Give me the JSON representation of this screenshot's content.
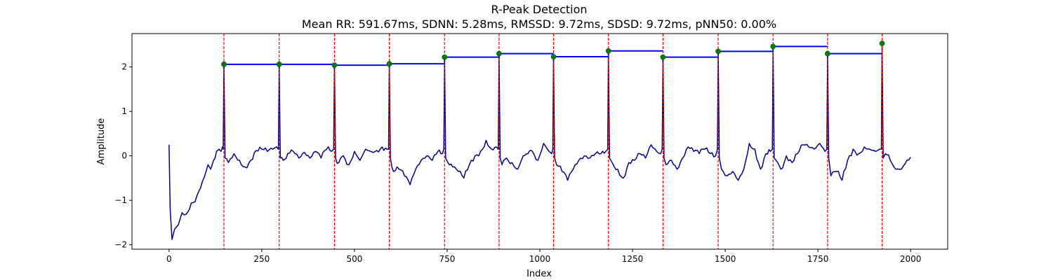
{
  "chart_data": {
    "type": "line",
    "title": "R-Peak Detection",
    "subtitle": "Mean RR: 591.67ms, SDNN: 5.28ms, RMSSD: 9.72ms, SDSD: 9.72ms, pNN50: 0.00%",
    "xlabel": "Index",
    "ylabel": "Amplitude",
    "xlim": [
      -100,
      2100
    ],
    "ylim": [
      -2.1,
      2.75
    ],
    "xticks": [
      0,
      250,
      500,
      750,
      1000,
      1250,
      1500,
      1750,
      2000
    ],
    "xtick_labels": [
      "0",
      "250",
      "500",
      "750",
      "1000",
      "1250",
      "1500",
      "1750",
      "2000"
    ],
    "yticks": [
      -2,
      -1,
      0,
      1,
      2
    ],
    "ytick_labels": [
      "−2",
      "−1",
      "0",
      "1",
      "2"
    ],
    "grid": false,
    "colors": {
      "signal": "#00008b",
      "peak_lines": "#ff0000",
      "rr_segments": "#0000ff",
      "peak_markers": "#008000"
    },
    "r_peaks": {
      "x": [
        148,
        297,
        446,
        594,
        743,
        890,
        1037,
        1185,
        1332,
        1481,
        1629,
        1776,
        1923
      ],
      "y": [
        2.06,
        2.06,
        2.04,
        2.07,
        2.22,
        2.3,
        2.23,
        2.36,
        2.22,
        2.35,
        2.46,
        2.3,
        2.53
      ]
    },
    "signal_baseline": [
      [
        0,
        0.25
      ],
      [
        3,
        -1.2
      ],
      [
        8,
        -1.88
      ],
      [
        15,
        -1.65
      ],
      [
        25,
        -1.55
      ],
      [
        35,
        -1.28
      ],
      [
        45,
        -1.32
      ],
      [
        55,
        -1.2
      ],
      [
        65,
        -1.05
      ],
      [
        75,
        -0.9
      ],
      [
        85,
        -0.72
      ],
      [
        95,
        -0.48
      ],
      [
        105,
        -0.2
      ],
      [
        112,
        -0.3
      ],
      [
        120,
        -0.1
      ],
      [
        128,
        0.1
      ],
      [
        135,
        0.15
      ],
      [
        140,
        0.1
      ],
      [
        144,
        0.2
      ],
      [
        160,
        -0.15
      ],
      [
        175,
        0.05
      ],
      [
        190,
        -0.1
      ],
      [
        205,
        -0.25
      ],
      [
        220,
        -0.1
      ],
      [
        235,
        0.12
      ],
      [
        250,
        0.15
      ],
      [
        265,
        0.1
      ],
      [
        280,
        0.15
      ],
      [
        290,
        0.2
      ],
      [
        308,
        -0.1
      ],
      [
        320,
        0.05
      ],
      [
        335,
        0.1
      ],
      [
        350,
        -0.05
      ],
      [
        365,
        0.08
      ],
      [
        380,
        -0.05
      ],
      [
        395,
        0.1
      ],
      [
        410,
        -0.05
      ],
      [
        425,
        0.15
      ],
      [
        438,
        0.1
      ],
      [
        458,
        -0.15
      ],
      [
        470,
        0.0
      ],
      [
        485,
        -0.2
      ],
      [
        500,
        0.1
      ],
      [
        515,
        -0.1
      ],
      [
        530,
        0.15
      ],
      [
        545,
        0.1
      ],
      [
        560,
        0.12
      ],
      [
        575,
        0.2
      ],
      [
        588,
        0.15
      ],
      [
        605,
        -0.35
      ],
      [
        620,
        -0.3
      ],
      [
        635,
        -0.45
      ],
      [
        650,
        -0.65
      ],
      [
        665,
        -0.3
      ],
      [
        680,
        -0.1
      ],
      [
        695,
        0.0
      ],
      [
        710,
        -0.1
      ],
      [
        725,
        0.1
      ],
      [
        737,
        0.05
      ],
      [
        752,
        -0.15
      ],
      [
        765,
        -0.25
      ],
      [
        780,
        -0.35
      ],
      [
        795,
        -0.5
      ],
      [
        810,
        -0.2
      ],
      [
        825,
        0.0
      ],
      [
        840,
        0.1
      ],
      [
        855,
        0.35
      ],
      [
        870,
        0.15
      ],
      [
        883,
        0.2
      ],
      [
        898,
        -0.2
      ],
      [
        910,
        -0.05
      ],
      [
        925,
        -0.15
      ],
      [
        940,
        -0.3
      ],
      [
        955,
        0.0
      ],
      [
        968,
        0.05
      ],
      [
        980,
        0.1
      ],
      [
        995,
        -0.1
      ],
      [
        1010,
        0.28
      ],
      [
        1025,
        0.1
      ],
      [
        1032,
        0.05
      ],
      [
        1045,
        -0.2
      ],
      [
        1060,
        -0.35
      ],
      [
        1075,
        -0.55
      ],
      [
        1090,
        -0.3
      ],
      [
        1105,
        -0.1
      ],
      [
        1120,
        0.0
      ],
      [
        1135,
        -0.05
      ],
      [
        1150,
        0.05
      ],
      [
        1165,
        0.05
      ],
      [
        1178,
        0.1
      ],
      [
        1195,
        -0.15
      ],
      [
        1210,
        -0.3
      ],
      [
        1225,
        -0.5
      ],
      [
        1240,
        -0.15
      ],
      [
        1255,
        -0.1
      ],
      [
        1270,
        0.05
      ],
      [
        1285,
        -0.05
      ],
      [
        1300,
        0.25
      ],
      [
        1315,
        0.1
      ],
      [
        1326,
        0.05
      ],
      [
        1340,
        -0.2
      ],
      [
        1355,
        -0.1
      ],
      [
        1370,
        -0.3
      ],
      [
        1385,
        -0.05
      ],
      [
        1400,
        0.2
      ],
      [
        1415,
        0.1
      ],
      [
        1430,
        0.05
      ],
      [
        1445,
        0.15
      ],
      [
        1460,
        0.05
      ],
      [
        1474,
        0.0
      ],
      [
        1490,
        -0.3
      ],
      [
        1505,
        -0.45
      ],
      [
        1520,
        -0.35
      ],
      [
        1535,
        -0.55
      ],
      [
        1550,
        -0.3
      ],
      [
        1565,
        0.28
      ],
      [
        1580,
        0.15
      ],
      [
        1595,
        -0.3
      ],
      [
        1610,
        0.05
      ],
      [
        1622,
        0.1
      ],
      [
        1637,
        -0.1
      ],
      [
        1650,
        -0.3
      ],
      [
        1665,
        0.0
      ],
      [
        1680,
        -0.15
      ],
      [
        1695,
        0.05
      ],
      [
        1710,
        0.25
      ],
      [
        1725,
        0.2
      ],
      [
        1740,
        0.15
      ],
      [
        1755,
        0.28
      ],
      [
        1769,
        0.1
      ],
      [
        1785,
        -0.45
      ],
      [
        1800,
        -0.35
      ],
      [
        1815,
        -0.55
      ],
      [
        1830,
        -0.1
      ],
      [
        1845,
        0.15
      ],
      [
        1860,
        0.05
      ],
      [
        1875,
        0.2
      ],
      [
        1890,
        0.15
      ],
      [
        1905,
        0.1
      ],
      [
        1916,
        0.15
      ],
      [
        1932,
        0.05
      ],
      [
        1945,
        -0.1
      ],
      [
        1960,
        -0.3
      ],
      [
        1975,
        -0.3
      ],
      [
        1990,
        -0.1
      ],
      [
        2000,
        -0.03
      ]
    ]
  }
}
